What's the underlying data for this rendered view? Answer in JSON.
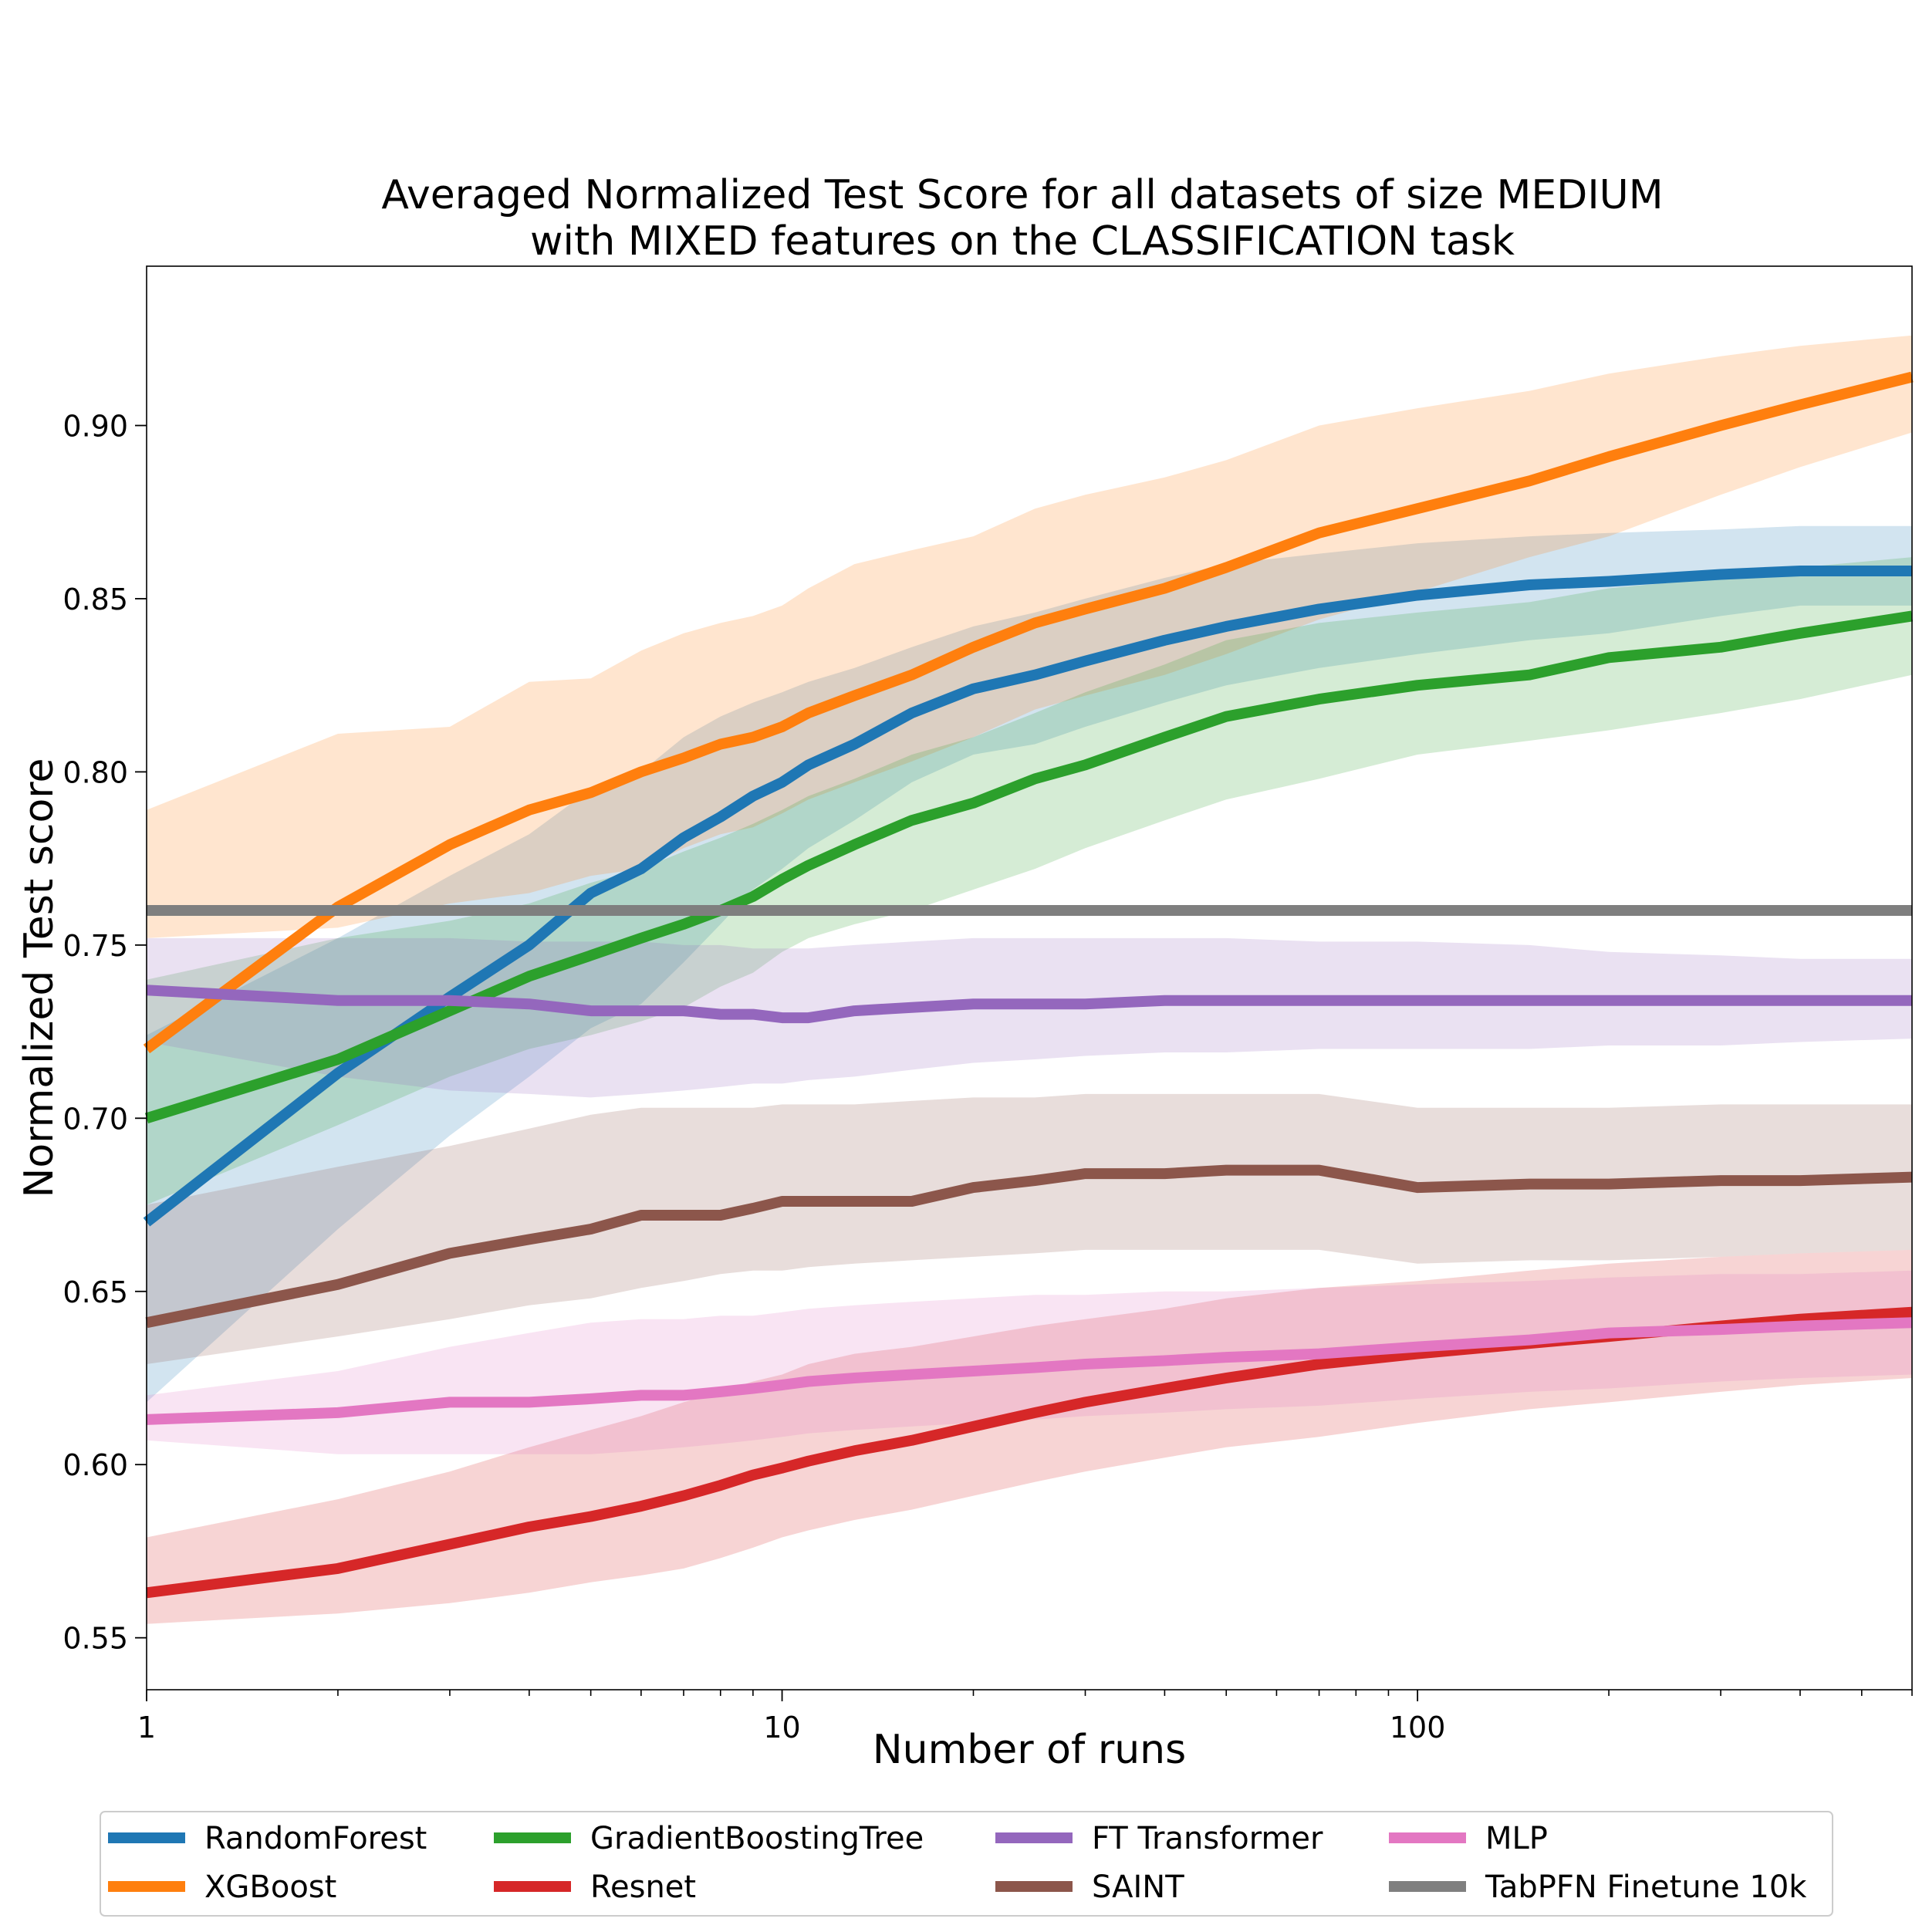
{
  "chart_data": {
    "type": "line",
    "title": "Averaged Normalized Test Score for all datasets of size MEDIUM\nwith MIXED features on the CLASSIFICATION task",
    "xlabel": "Number of runs",
    "ylabel": "Normalized Test score",
    "xscale": "log",
    "xlim": [
      1,
      600
    ],
    "ylim": [
      0.535,
      0.946
    ],
    "xticks": [
      {
        "value": 1,
        "label": "1"
      },
      {
        "value": 10,
        "label": "10"
      },
      {
        "value": 100,
        "label": "100"
      }
    ],
    "yticks": [
      {
        "value": 0.55,
        "label": "0.55"
      },
      {
        "value": 0.6,
        "label": "0.60"
      },
      {
        "value": 0.65,
        "label": "0.65"
      },
      {
        "value": 0.7,
        "label": "0.70"
      },
      {
        "value": 0.75,
        "label": "0.75"
      },
      {
        "value": 0.8,
        "label": "0.80"
      },
      {
        "value": 0.85,
        "label": "0.85"
      },
      {
        "value": 0.9,
        "label": "0.90"
      }
    ],
    "grid": false,
    "legend_position": "bottom",
    "series": [
      {
        "name": "RandomForest",
        "color": "#1f77b4",
        "x": [
          1,
          2,
          3,
          4,
          5,
          6,
          7,
          8,
          9,
          10,
          11,
          13,
          16,
          20,
          25,
          30,
          40,
          50,
          70,
          100,
          150,
          200,
          300,
          400,
          600
        ],
        "y": [
          0.67,
          0.713,
          0.735,
          0.75,
          0.765,
          0.772,
          0.781,
          0.787,
          0.793,
          0.797,
          0.802,
          0.808,
          0.817,
          0.824,
          0.828,
          0.832,
          0.838,
          0.842,
          0.847,
          0.851,
          0.854,
          0.855,
          0.857,
          0.858,
          0.858
        ],
        "lower": [
          0.618,
          0.668,
          0.695,
          0.712,
          0.726,
          0.733,
          0.745,
          0.756,
          0.766,
          0.772,
          0.778,
          0.786,
          0.797,
          0.805,
          0.808,
          0.813,
          0.82,
          0.825,
          0.83,
          0.834,
          0.838,
          0.84,
          0.845,
          0.848,
          0.848
        ],
        "upper": [
          0.724,
          0.752,
          0.77,
          0.782,
          0.795,
          0.8,
          0.81,
          0.816,
          0.82,
          0.823,
          0.826,
          0.83,
          0.836,
          0.842,
          0.846,
          0.85,
          0.856,
          0.86,
          0.863,
          0.866,
          0.868,
          0.869,
          0.87,
          0.871,
          0.871
        ]
      },
      {
        "name": "XGBoost",
        "color": "#ff7f0e",
        "x": [
          1,
          2,
          3,
          4,
          5,
          6,
          7,
          8,
          9,
          10,
          11,
          13,
          16,
          20,
          25,
          30,
          40,
          50,
          70,
          100,
          150,
          200,
          300,
          400,
          600
        ],
        "y": [
          0.72,
          0.761,
          0.779,
          0.789,
          0.794,
          0.8,
          0.804,
          0.808,
          0.81,
          0.813,
          0.817,
          0.822,
          0.828,
          0.836,
          0.843,
          0.847,
          0.853,
          0.859,
          0.869,
          0.876,
          0.884,
          0.891,
          0.9,
          0.906,
          0.914
        ],
        "lower": [
          0.752,
          0.755,
          0.762,
          0.765,
          0.77,
          0.772,
          0.778,
          0.782,
          0.784,
          0.788,
          0.792,
          0.797,
          0.803,
          0.81,
          0.818,
          0.822,
          0.828,
          0.834,
          0.844,
          0.852,
          0.862,
          0.868,
          0.88,
          0.888,
          0.898
        ],
        "upper": [
          0.789,
          0.811,
          0.813,
          0.826,
          0.827,
          0.835,
          0.84,
          0.843,
          0.845,
          0.848,
          0.853,
          0.86,
          0.864,
          0.868,
          0.876,
          0.88,
          0.885,
          0.89,
          0.9,
          0.905,
          0.91,
          0.915,
          0.92,
          0.923,
          0.926
        ]
      },
      {
        "name": "GradientBoostingTree",
        "color": "#2ca02c",
        "x": [
          1,
          2,
          3,
          4,
          5,
          6,
          7,
          8,
          9,
          10,
          11,
          13,
          16,
          20,
          25,
          30,
          40,
          50,
          70,
          100,
          150,
          200,
          300,
          400,
          600
        ],
        "y": [
          0.7,
          0.717,
          0.731,
          0.741,
          0.747,
          0.752,
          0.756,
          0.76,
          0.764,
          0.769,
          0.773,
          0.779,
          0.786,
          0.791,
          0.798,
          0.802,
          0.81,
          0.816,
          0.821,
          0.825,
          0.828,
          0.833,
          0.836,
          0.84,
          0.845
        ],
        "lower": [
          0.675,
          0.698,
          0.712,
          0.72,
          0.724,
          0.728,
          0.732,
          0.738,
          0.742,
          0.748,
          0.752,
          0.756,
          0.76,
          0.766,
          0.772,
          0.778,
          0.786,
          0.792,
          0.798,
          0.805,
          0.809,
          0.812,
          0.817,
          0.821,
          0.828
        ],
        "upper": [
          0.74,
          0.752,
          0.757,
          0.762,
          0.768,
          0.772,
          0.777,
          0.781,
          0.785,
          0.789,
          0.793,
          0.798,
          0.805,
          0.81,
          0.817,
          0.823,
          0.831,
          0.838,
          0.843,
          0.846,
          0.849,
          0.853,
          0.856,
          0.859,
          0.862
        ]
      },
      {
        "name": "Resnet",
        "color": "#d62728",
        "x": [
          1,
          2,
          3,
          4,
          5,
          6,
          7,
          8,
          9,
          10,
          11,
          13,
          16,
          20,
          25,
          30,
          40,
          50,
          70,
          100,
          150,
          200,
          300,
          400,
          600
        ],
        "y": [
          0.563,
          0.57,
          0.577,
          0.582,
          0.585,
          0.588,
          0.591,
          0.594,
          0.597,
          0.599,
          0.601,
          0.604,
          0.607,
          0.611,
          0.615,
          0.618,
          0.622,
          0.625,
          0.629,
          0.632,
          0.635,
          0.637,
          0.64,
          0.642,
          0.644
        ],
        "lower": [
          0.554,
          0.557,
          0.56,
          0.563,
          0.566,
          0.568,
          0.57,
          0.573,
          0.576,
          0.579,
          0.581,
          0.584,
          0.587,
          0.591,
          0.595,
          0.598,
          0.602,
          0.605,
          0.608,
          0.612,
          0.616,
          0.618,
          0.621,
          0.623,
          0.625
        ],
        "upper": [
          0.579,
          0.59,
          0.598,
          0.605,
          0.61,
          0.614,
          0.618,
          0.621,
          0.624,
          0.626,
          0.629,
          0.632,
          0.634,
          0.637,
          0.64,
          0.642,
          0.645,
          0.648,
          0.651,
          0.653,
          0.656,
          0.658,
          0.66,
          0.661,
          0.662
        ]
      },
      {
        "name": "FT Transformer",
        "color": "#9467bd",
        "x": [
          1,
          2,
          3,
          4,
          5,
          6,
          7,
          8,
          9,
          10,
          11,
          13,
          16,
          20,
          25,
          30,
          40,
          50,
          70,
          100,
          150,
          200,
          300,
          400,
          600
        ],
        "y": [
          0.737,
          0.734,
          0.734,
          0.733,
          0.731,
          0.731,
          0.731,
          0.73,
          0.73,
          0.729,
          0.729,
          0.731,
          0.732,
          0.733,
          0.733,
          0.733,
          0.734,
          0.734,
          0.734,
          0.734,
          0.734,
          0.734,
          0.734,
          0.734,
          0.734
        ],
        "lower": [
          0.722,
          0.712,
          0.708,
          0.707,
          0.706,
          0.707,
          0.708,
          0.709,
          0.71,
          0.71,
          0.711,
          0.712,
          0.714,
          0.716,
          0.717,
          0.718,
          0.719,
          0.719,
          0.72,
          0.72,
          0.72,
          0.721,
          0.721,
          0.722,
          0.723
        ],
        "upper": [
          0.752,
          0.752,
          0.752,
          0.751,
          0.751,
          0.751,
          0.75,
          0.75,
          0.749,
          0.749,
          0.749,
          0.75,
          0.751,
          0.752,
          0.752,
          0.752,
          0.752,
          0.752,
          0.751,
          0.751,
          0.75,
          0.748,
          0.747,
          0.746,
          0.746
        ]
      },
      {
        "name": "SAINT",
        "color": "#8c564b",
        "x": [
          1,
          2,
          3,
          4,
          5,
          6,
          7,
          8,
          9,
          10,
          11,
          13,
          16,
          20,
          25,
          30,
          40,
          50,
          70,
          100,
          150,
          200,
          300,
          400,
          600
        ],
        "y": [
          0.641,
          0.652,
          0.661,
          0.665,
          0.668,
          0.672,
          0.672,
          0.672,
          0.674,
          0.676,
          0.676,
          0.676,
          0.676,
          0.68,
          0.682,
          0.684,
          0.684,
          0.685,
          0.685,
          0.68,
          0.681,
          0.681,
          0.682,
          0.682,
          0.683
        ],
        "lower": [
          0.629,
          0.637,
          0.642,
          0.646,
          0.648,
          0.651,
          0.653,
          0.655,
          0.656,
          0.656,
          0.657,
          0.658,
          0.659,
          0.66,
          0.661,
          0.662,
          0.662,
          0.662,
          0.662,
          0.658,
          0.659,
          0.659,
          0.66,
          0.661,
          0.662
        ],
        "upper": [
          0.675,
          0.686,
          0.692,
          0.697,
          0.701,
          0.703,
          0.703,
          0.703,
          0.703,
          0.704,
          0.704,
          0.704,
          0.705,
          0.706,
          0.706,
          0.707,
          0.707,
          0.707,
          0.707,
          0.703,
          0.703,
          0.703,
          0.704,
          0.704,
          0.704
        ]
      },
      {
        "name": "MLP",
        "color": "#e377c2",
        "x": [
          1,
          2,
          3,
          4,
          5,
          6,
          7,
          8,
          9,
          10,
          11,
          13,
          16,
          20,
          25,
          30,
          40,
          50,
          70,
          100,
          150,
          200,
          300,
          400,
          600
        ],
        "y": [
          0.613,
          0.615,
          0.618,
          0.618,
          0.619,
          0.62,
          0.62,
          0.621,
          0.622,
          0.623,
          0.624,
          0.625,
          0.626,
          0.627,
          0.628,
          0.629,
          0.63,
          0.631,
          0.632,
          0.634,
          0.636,
          0.638,
          0.639,
          0.64,
          0.641
        ],
        "lower": [
          0.607,
          0.603,
          0.603,
          0.603,
          0.603,
          0.604,
          0.605,
          0.606,
          0.607,
          0.608,
          0.609,
          0.61,
          0.611,
          0.612,
          0.613,
          0.614,
          0.615,
          0.616,
          0.617,
          0.619,
          0.621,
          0.622,
          0.624,
          0.625,
          0.626
        ],
        "upper": [
          0.62,
          0.627,
          0.634,
          0.638,
          0.641,
          0.642,
          0.642,
          0.643,
          0.643,
          0.644,
          0.645,
          0.646,
          0.647,
          0.648,
          0.649,
          0.649,
          0.65,
          0.65,
          0.651,
          0.652,
          0.653,
          0.654,
          0.655,
          0.655,
          0.656
        ]
      },
      {
        "name": "TabPFN Finetune 10k",
        "color": "#7f7f7f",
        "x": [
          1,
          600
        ],
        "y": [
          0.76,
          0.76
        ]
      }
    ]
  }
}
